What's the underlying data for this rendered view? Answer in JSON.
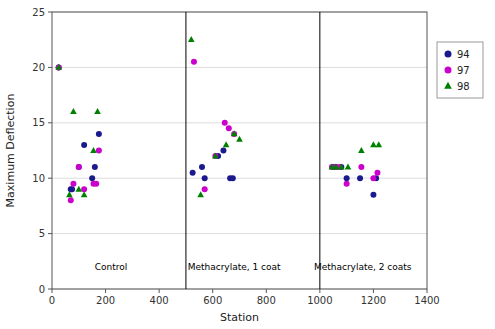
{
  "chart_data": {
    "type": "scatter",
    "xlabel": "Station",
    "ylabel": "Maximum Deflection",
    "xlim": [
      0,
      1400
    ],
    "ylim": [
      0,
      25
    ],
    "xticks": [
      0,
      200,
      400,
      600,
      800,
      1000,
      1200,
      1400
    ],
    "yticks": [
      0,
      5,
      10,
      15,
      20,
      25
    ],
    "grid": "y",
    "legend": "right",
    "vlines": [
      500,
      1000
    ],
    "annotations": [
      {
        "text": "Control",
        "x": 220,
        "y": 1.5
      },
      {
        "text": "Methacrylate, 1 coat",
        "x": 680,
        "y": 1.5
      },
      {
        "text": "Methacrylate, 2 coats",
        "x": 1160,
        "y": 1.5
      }
    ],
    "series": [
      {
        "name": "94",
        "color": "#1a1a8c",
        "marker": "circle",
        "x": [
          25,
          70,
          75,
          100,
          120,
          150,
          160,
          175,
          525,
          560,
          570,
          620,
          640,
          665,
          675,
          1050,
          1060,
          1080,
          1100,
          1150,
          1200,
          1210
        ],
        "values": [
          20,
          9,
          9,
          11,
          13,
          10,
          11,
          14,
          10.5,
          11,
          10,
          12,
          12.5,
          10,
          10,
          11,
          11,
          11,
          10,
          10,
          8.5,
          10
        ]
      },
      {
        "name": "97",
        "color": "#cc00cc",
        "marker": "circle",
        "x": [
          25,
          70,
          80,
          100,
          120,
          155,
          165,
          175,
          530,
          570,
          610,
          645,
          660,
          680,
          1045,
          1060,
          1075,
          1100,
          1155,
          1200,
          1215
        ],
        "values": [
          20,
          8,
          9.5,
          11,
          9,
          9.5,
          9.5,
          12.5,
          20.5,
          9,
          12,
          15,
          14.5,
          14,
          11,
          11,
          11,
          9.5,
          11,
          10,
          10.5
        ]
      },
      {
        "name": "98",
        "color": "#008000",
        "marker": "triangle",
        "x": [
          25,
          65,
          80,
          100,
          120,
          155,
          170,
          520,
          555,
          610,
          650,
          680,
          700,
          1045,
          1060,
          1080,
          1105,
          1155,
          1200,
          1220
        ],
        "values": [
          20,
          8.5,
          16,
          9,
          8.5,
          12.5,
          16,
          22.5,
          8.5,
          12,
          13,
          14,
          13.5,
          11,
          11,
          11,
          11,
          12.5,
          13,
          13
        ]
      }
    ]
  }
}
